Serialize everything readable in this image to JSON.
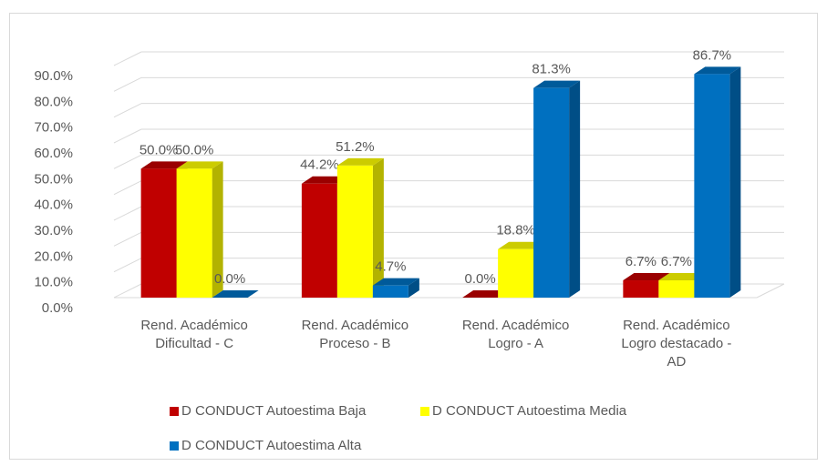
{
  "chart_data": {
    "type": "bar3d",
    "categories": [
      "Rend. Académico Dificultad - C",
      "Rend. Académico Proceso - B",
      "Rend. Académico Logro - A",
      "Rend. Académico Logro destacado - AD"
    ],
    "series": [
      {
        "name": "D CONDUCT Autoestima Baja",
        "color": "#c00000",
        "values": [
          50.0,
          44.2,
          0.0,
          6.7
        ],
        "value_labels": [
          "50.0%",
          "44.2%",
          "0.0%",
          "6.7%"
        ]
      },
      {
        "name": "D CONDUCT Autoestima Media",
        "color": "#ffff00",
        "values": [
          50.0,
          51.2,
          18.8,
          6.7
        ],
        "value_labels": [
          "50.0%",
          "51.2%",
          "18.8%",
          "6.7%"
        ]
      },
      {
        "name": "D CONDUCT Autoestima Alta",
        "color": "#0070c0",
        "values": [
          0.0,
          4.7,
          81.3,
          86.7
        ],
        "value_labels": [
          "0.0%",
          "4.7%",
          "81.3%",
          "86.7%"
        ]
      }
    ],
    "ylim": [
      0,
      90
    ],
    "yticks": [
      {
        "value": 0,
        "label": "0.0%"
      },
      {
        "value": 10,
        "label": "10.0%"
      },
      {
        "value": 20,
        "label": "20.0%"
      },
      {
        "value": 30,
        "label": "30.0%"
      },
      {
        "value": 40,
        "label": "40.0%"
      },
      {
        "value": 50,
        "label": "50.0%"
      },
      {
        "value": 60,
        "label": "60.0%"
      },
      {
        "value": 70,
        "label": "70.0%"
      },
      {
        "value": 80,
        "label": "80.0%"
      },
      {
        "value": 90,
        "label": "90.0%"
      }
    ],
    "grid": true,
    "legend": "bottom"
  }
}
